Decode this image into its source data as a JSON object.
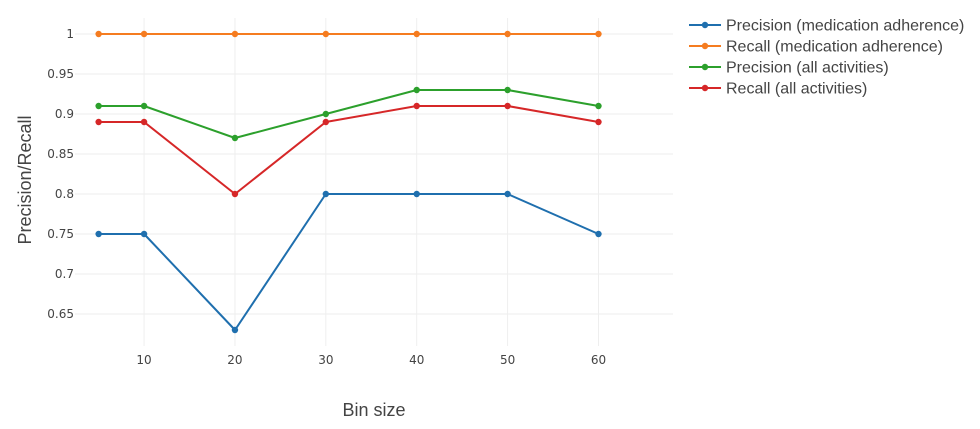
{
  "chart_data": {
    "type": "line",
    "xlabel": "Bin size",
    "ylabel": "Precision/Recall",
    "x": [
      5,
      10,
      20,
      30,
      40,
      50,
      60
    ],
    "x_ticks": [
      10,
      20,
      30,
      40,
      50,
      60
    ],
    "x_tick_labels": [
      "10",
      "20",
      "30",
      "40",
      "50",
      "60"
    ],
    "y_ticks": [
      0.65,
      0.7,
      0.75,
      0.8,
      0.85,
      0.9,
      0.95,
      1
    ],
    "y_tick_labels": [
      "0.65",
      "0.7",
      "0.75",
      "0.8",
      "0.85",
      "0.9",
      "0.95",
      "1"
    ],
    "xlim": [
      2.4,
      68.2
    ],
    "ylim": [
      0.61,
      1.02
    ],
    "grid": true,
    "legend_position": "top-right",
    "series": [
      {
        "name": "Precision (medication adherence)",
        "color": "#1f6fae",
        "values": [
          0.75,
          0.75,
          0.63,
          0.8,
          0.8,
          0.8,
          0.75
        ]
      },
      {
        "name": "Recall (medication adherence)",
        "color": "#f57c20",
        "values": [
          1,
          1,
          1,
          1,
          1,
          1,
          1
        ]
      },
      {
        "name": "Precision (all activities)",
        "color": "#2ca02c",
        "values": [
          0.91,
          0.91,
          0.87,
          0.9,
          0.93,
          0.93,
          0.91
        ]
      },
      {
        "name": "Recall (all activities)",
        "color": "#d62728",
        "values": [
          0.89,
          0.89,
          0.8,
          0.89,
          0.91,
          0.91,
          0.89
        ]
      }
    ]
  }
}
